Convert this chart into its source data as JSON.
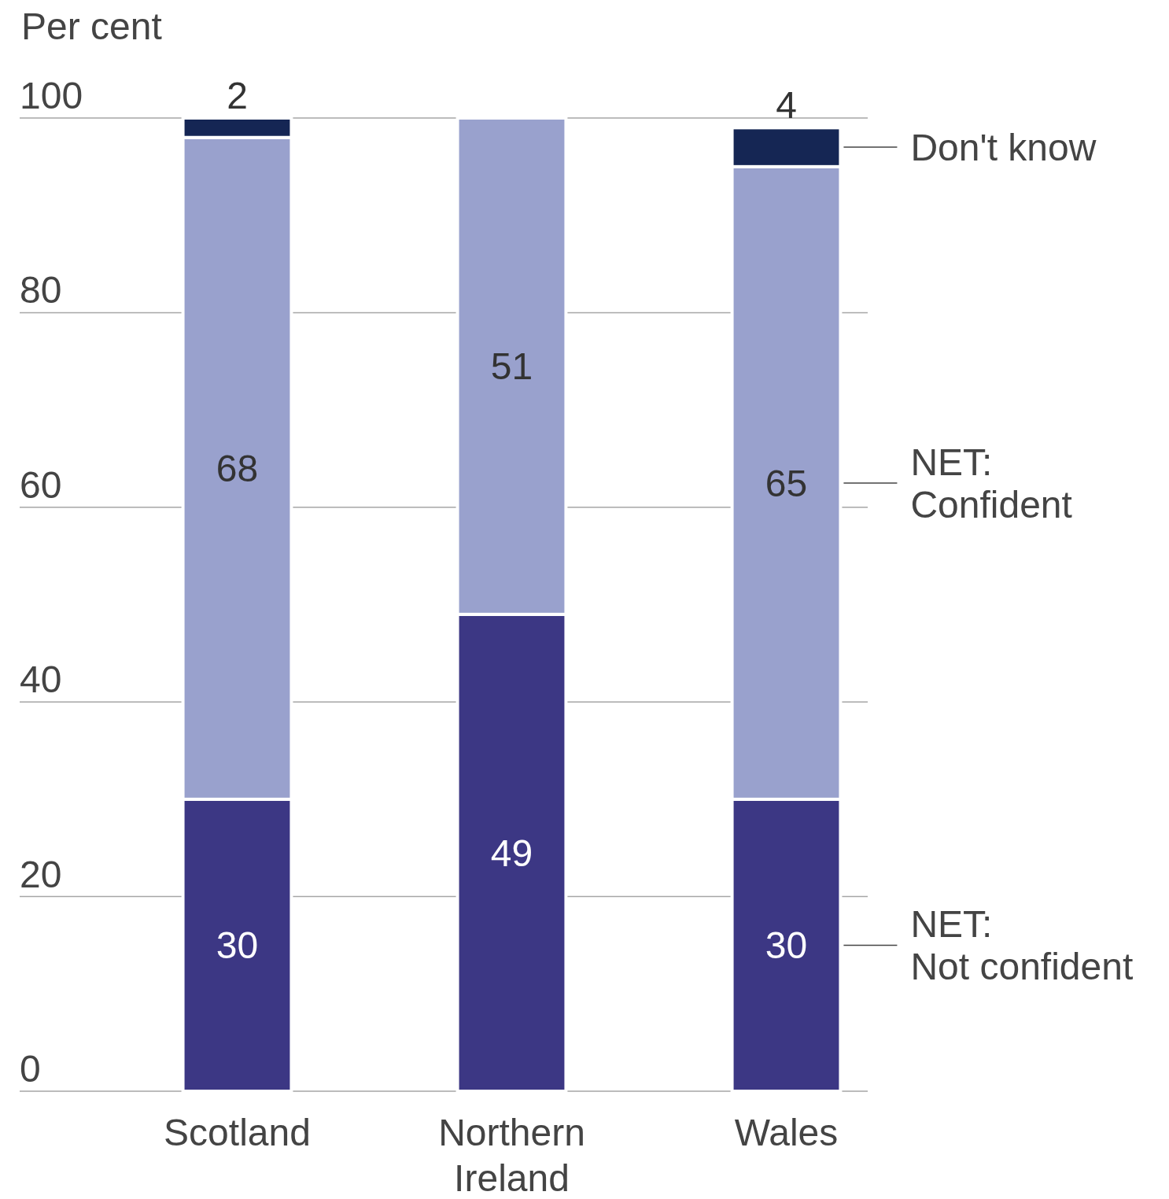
{
  "chart_data": {
    "type": "bar",
    "stacked": true,
    "ylabel": "Per cent",
    "categories": [
      "Scotland",
      "Northern Ireland",
      "Wales"
    ],
    "series": [
      {
        "name": "NET: Not confident",
        "color": "#3c3784",
        "values": [
          30,
          49,
          30
        ]
      },
      {
        "name": "NET: Confident",
        "color": "#99a1cd",
        "values": [
          68,
          51,
          65
        ]
      },
      {
        "name": "Don't know",
        "color": "#152654",
        "values": [
          2,
          null,
          4
        ]
      }
    ],
    "ylim": [
      0,
      100
    ],
    "yticks": [
      0,
      20,
      40,
      60,
      80,
      100
    ],
    "grid": true,
    "legend": "right",
    "data_labels": true
  }
}
